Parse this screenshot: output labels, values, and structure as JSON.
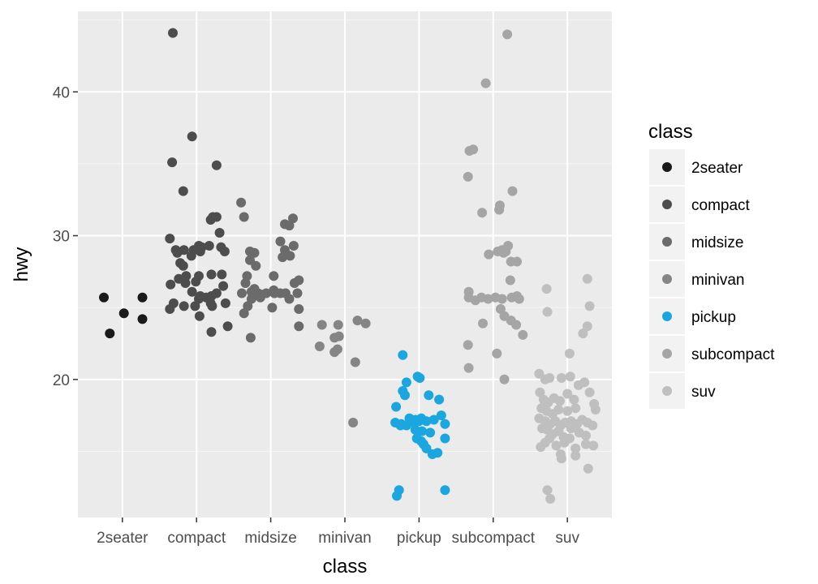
{
  "chart_data": {
    "type": "scatter",
    "title": "",
    "xlabel": "class",
    "ylabel": "hwy",
    "categories": [
      "2seater",
      "compact",
      "midsize",
      "minivan",
      "pickup",
      "subcompact",
      "suv"
    ],
    "ylim": [
      10.4,
      45.6
    ],
    "yticks": [
      20,
      30,
      40
    ],
    "grid": true,
    "jitter": "horizontal",
    "legend": {
      "title": "class",
      "position": "right",
      "items": [
        "2seater",
        "compact",
        "midsize",
        "minivan",
        "pickup",
        "subcompact",
        "suv"
      ]
    },
    "colors": {
      "2seater": "#1a1a1a",
      "compact": "#4d4d4d",
      "midsize": "#6b6b6b",
      "minivan": "#858585",
      "pickup": "#1ba6e0",
      "subcompact": "#a5a5a5",
      "suv": "#bfbfbf"
    },
    "series": [
      {
        "name": "2seater",
        "points": [
          [
            0.75,
            25.7
          ],
          [
            0.83,
            23.2
          ],
          [
            1.02,
            24.6
          ],
          [
            1.27,
            25.7
          ],
          [
            1.27,
            24.2
          ]
        ]
      },
      {
        "name": "compact",
        "points": [
          [
            1.68,
            44.1
          ],
          [
            1.94,
            36.9
          ],
          [
            1.67,
            35.1
          ],
          [
            2.27,
            34.9
          ],
          [
            1.82,
            33.1
          ],
          [
            2.22,
            31.3
          ],
          [
            2.19,
            31.1
          ],
          [
            2.27,
            31.3
          ],
          [
            2.31,
            30.2
          ],
          [
            1.64,
            29.8
          ],
          [
            1.72,
            29.0
          ],
          [
            1.83,
            29.0
          ],
          [
            1.96,
            29.0
          ],
          [
            2.03,
            29.3
          ],
          [
            2.07,
            29.2
          ],
          [
            2.17,
            29.3
          ],
          [
            2.33,
            29.2
          ],
          [
            2.38,
            28.9
          ],
          [
            1.74,
            28.8
          ],
          [
            1.78,
            28.1
          ],
          [
            1.93,
            28.6
          ],
          [
            2.05,
            28.9
          ],
          [
            1.82,
            27.9
          ],
          [
            1.76,
            27.0
          ],
          [
            1.86,
            27.2
          ],
          [
            2.03,
            27.2
          ],
          [
            2.2,
            27.3
          ],
          [
            2.34,
            27.3
          ],
          [
            1.65,
            26.6
          ],
          [
            1.85,
            26.7
          ],
          [
            1.94,
            26.1
          ],
          [
            1.99,
            26.8
          ],
          [
            2.05,
            25.8
          ],
          [
            2.13,
            25.7
          ],
          [
            2.2,
            25.8
          ],
          [
            2.27,
            26.0
          ],
          [
            2.36,
            26.5
          ],
          [
            2.39,
            25.3
          ],
          [
            1.64,
            24.9
          ],
          [
            1.69,
            25.3
          ],
          [
            1.83,
            25.1
          ],
          [
            1.98,
            25.1
          ],
          [
            2.03,
            25.6
          ],
          [
            2.19,
            25.3
          ],
          [
            2.21,
            25.1
          ],
          [
            2.04,
            24.4
          ],
          [
            2.42,
            23.7
          ],
          [
            2.2,
            23.3
          ]
        ]
      },
      {
        "name": "midsize",
        "points": [
          [
            2.6,
            32.3
          ],
          [
            2.64,
            31.3
          ],
          [
            3.3,
            31.2
          ],
          [
            3.19,
            30.8
          ],
          [
            3.25,
            30.7
          ],
          [
            3.13,
            29.6
          ],
          [
            3.19,
            29.0
          ],
          [
            3.31,
            29.3
          ],
          [
            3.16,
            28.5
          ],
          [
            3.26,
            28.6
          ],
          [
            2.78,
            28.8
          ],
          [
            2.72,
            28.9
          ],
          [
            2.72,
            28.3
          ],
          [
            2.8,
            27.9
          ],
          [
            2.68,
            27.2
          ],
          [
            2.66,
            26.7
          ],
          [
            3.04,
            27.2
          ],
          [
            3.32,
            26.7
          ],
          [
            3.38,
            26.9
          ],
          [
            2.61,
            26.0
          ],
          [
            2.74,
            26.1
          ],
          [
            2.78,
            26.3
          ],
          [
            2.83,
            26.0
          ],
          [
            2.88,
            25.9
          ],
          [
            2.86,
            25.7
          ],
          [
            2.94,
            26.0
          ],
          [
            3.05,
            26.0
          ],
          [
            3.13,
            26.0
          ],
          [
            3.2,
            26.0
          ],
          [
            3.25,
            25.6
          ],
          [
            3.36,
            26.0
          ],
          [
            3.04,
            26.2
          ],
          [
            2.74,
            25.6
          ],
          [
            2.69,
            25.1
          ],
          [
            3.02,
            25.0
          ],
          [
            3.38,
            24.9
          ],
          [
            2.64,
            24.6
          ],
          [
            3.38,
            23.7
          ],
          [
            2.73,
            22.9
          ]
        ]
      },
      {
        "name": "minivan",
        "points": [
          [
            3.69,
            23.8
          ],
          [
            3.91,
            23.8
          ],
          [
            3.86,
            22.9
          ],
          [
            3.92,
            23.0
          ],
          [
            3.66,
            22.3
          ],
          [
            3.9,
            22.1
          ],
          [
            3.86,
            21.9
          ],
          [
            4.17,
            24.1
          ],
          [
            4.28,
            23.9
          ],
          [
            4.14,
            21.2
          ],
          [
            4.11,
            17.0
          ]
        ]
      },
      {
        "name": "pickup",
        "points": [
          [
            4.78,
            21.7
          ],
          [
            4.98,
            20.2
          ],
          [
            5.01,
            20.1
          ],
          [
            4.83,
            19.8
          ],
          [
            4.78,
            19.2
          ],
          [
            4.81,
            18.9
          ],
          [
            5.13,
            18.9
          ],
          [
            5.27,
            18.6
          ],
          [
            4.69,
            18.1
          ],
          [
            5.3,
            17.5
          ],
          [
            4.68,
            17.0
          ],
          [
            4.76,
            16.9
          ],
          [
            4.87,
            17.3
          ],
          [
            4.93,
            17.0
          ],
          [
            4.95,
            17.2
          ],
          [
            5.0,
            17.1
          ],
          [
            5.03,
            17.3
          ],
          [
            5.1,
            17.1
          ],
          [
            5.2,
            17.2
          ],
          [
            5.35,
            16.9
          ],
          [
            4.75,
            16.8
          ],
          [
            4.83,
            16.8
          ],
          [
            4.95,
            16.5
          ],
          [
            5.04,
            16.4
          ],
          [
            5.15,
            16.3
          ],
          [
            4.97,
            15.9
          ],
          [
            5.03,
            15.7
          ],
          [
            5.06,
            15.5
          ],
          [
            5.1,
            15.2
          ],
          [
            5.35,
            15.9
          ],
          [
            5.18,
            14.8
          ],
          [
            5.25,
            14.9
          ],
          [
            4.73,
            12.3
          ],
          [
            4.7,
            11.9
          ],
          [
            5.35,
            12.3
          ]
        ]
      },
      {
        "name": "subcompact",
        "points": [
          [
            6.19,
            44.0
          ],
          [
            5.9,
            40.6
          ],
          [
            5.68,
            35.9
          ],
          [
            5.73,
            36.0
          ],
          [
            5.66,
            34.1
          ],
          [
            6.26,
            33.1
          ],
          [
            6.09,
            32.1
          ],
          [
            6.08,
            31.8
          ],
          [
            5.85,
            31.6
          ],
          [
            6.2,
            29.3
          ],
          [
            6.12,
            29.0
          ],
          [
            6.06,
            28.9
          ],
          [
            6.17,
            28.9
          ],
          [
            5.94,
            28.7
          ],
          [
            6.14,
            28.8
          ],
          [
            6.24,
            28.2
          ],
          [
            6.32,
            28.2
          ],
          [
            6.23,
            26.9
          ],
          [
            5.67,
            26.1
          ],
          [
            5.67,
            25.7
          ],
          [
            5.76,
            25.5
          ],
          [
            5.84,
            25.7
          ],
          [
            5.93,
            25.6
          ],
          [
            6.03,
            25.7
          ],
          [
            6.12,
            25.6
          ],
          [
            6.25,
            25.7
          ],
          [
            6.32,
            25.8
          ],
          [
            6.35,
            25.6
          ],
          [
            6.1,
            24.9
          ],
          [
            6.15,
            24.4
          ],
          [
            6.24,
            24.1
          ],
          [
            5.86,
            23.9
          ],
          [
            6.31,
            23.8
          ],
          [
            6.4,
            23.1
          ],
          [
            5.66,
            22.4
          ],
          [
            6.05,
            21.8
          ],
          [
            5.67,
            20.8
          ],
          [
            6.15,
            20.0
          ]
        ]
      },
      {
        "name": "suv",
        "points": [
          [
            6.72,
            26.3
          ],
          [
            7.27,
            27.0
          ],
          [
            6.73,
            24.7
          ],
          [
            7.3,
            25.1
          ],
          [
            7.27,
            23.7
          ],
          [
            7.21,
            23.2
          ],
          [
            7.03,
            21.8
          ],
          [
            6.62,
            20.4
          ],
          [
            6.7,
            20.0
          ],
          [
            6.76,
            20.1
          ],
          [
            6.92,
            20.1
          ],
          [
            7.04,
            20.2
          ],
          [
            7.15,
            19.6
          ],
          [
            7.23,
            19.8
          ],
          [
            6.63,
            19.1
          ],
          [
            6.68,
            18.6
          ],
          [
            6.74,
            18.4
          ],
          [
            6.82,
            18.7
          ],
          [
            6.9,
            18.5
          ],
          [
            7.0,
            19.0
          ],
          [
            7.09,
            18.6
          ],
          [
            7.3,
            19.1
          ],
          [
            7.36,
            18.3
          ],
          [
            6.65,
            18.0
          ],
          [
            6.72,
            17.8
          ],
          [
            6.8,
            17.6
          ],
          [
            6.88,
            17.9
          ],
          [
            7.0,
            17.8
          ],
          [
            7.11,
            18.0
          ],
          [
            7.38,
            17.9
          ],
          [
            6.62,
            17.3
          ],
          [
            6.7,
            17.1
          ],
          [
            6.77,
            16.9
          ],
          [
            6.84,
            17.1
          ],
          [
            6.91,
            16.8
          ],
          [
            6.97,
            17.0
          ],
          [
            7.05,
            17.1
          ],
          [
            7.13,
            16.9
          ],
          [
            7.2,
            17.2
          ],
          [
            7.27,
            17.0
          ],
          [
            7.34,
            16.8
          ],
          [
            6.66,
            16.6
          ],
          [
            6.73,
            16.5
          ],
          [
            6.8,
            16.2
          ],
          [
            6.88,
            16.4
          ],
          [
            6.95,
            16.0
          ],
          [
            7.05,
            16.6
          ],
          [
            7.16,
            16.3
          ],
          [
            7.25,
            16.1
          ],
          [
            6.7,
            15.6
          ],
          [
            6.76,
            15.9
          ],
          [
            6.85,
            15.4
          ],
          [
            6.96,
            15.6
          ],
          [
            7.03,
            15.9
          ],
          [
            7.11,
            15.2
          ],
          [
            7.25,
            15.5
          ],
          [
            7.35,
            15.4
          ],
          [
            6.64,
            15.3
          ],
          [
            6.91,
            14.8
          ],
          [
            6.92,
            14.5
          ],
          [
            7.11,
            14.7
          ],
          [
            7.28,
            13.8
          ],
          [
            6.73,
            12.3
          ],
          [
            6.77,
            11.7
          ]
        ]
      }
    ]
  }
}
